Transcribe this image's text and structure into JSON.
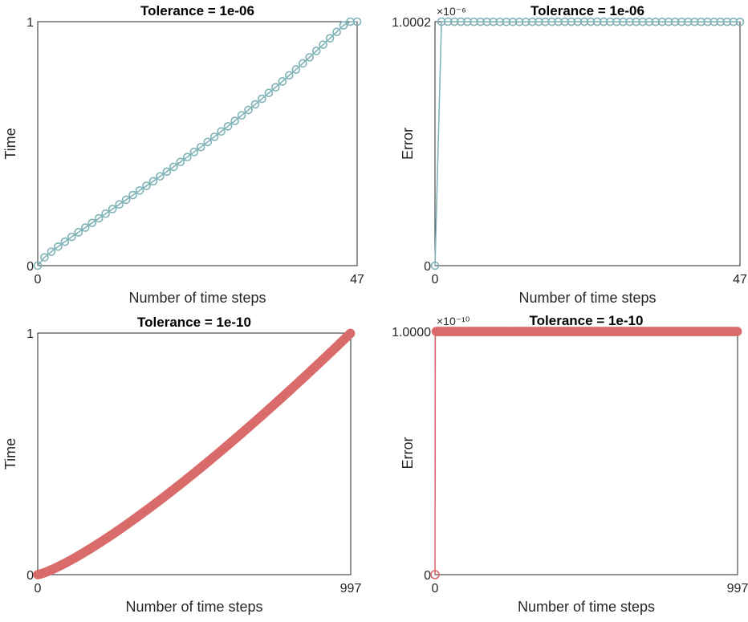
{
  "chart_data": [
    {
      "type": "line",
      "title": "Tolerance = 1e-06",
      "xlabel": "Number of time steps",
      "ylabel": "Time",
      "xlim": [
        0,
        47
      ],
      "ylim": [
        0,
        1
      ],
      "xticks": [
        "0",
        "47"
      ],
      "yticks": [
        "0",
        "1"
      ],
      "exponent": "",
      "color": "#7fb3b8",
      "marker": "open-circle",
      "series": [
        {
          "x": [
            0,
            1,
            2,
            3,
            4,
            5,
            6,
            7,
            8,
            9,
            10,
            11,
            12,
            13,
            14,
            15,
            16,
            17,
            18,
            19,
            20,
            21,
            22,
            23,
            24,
            25,
            26,
            27,
            28,
            29,
            30,
            31,
            32,
            33,
            34,
            35,
            36,
            37,
            38,
            39,
            40,
            41,
            42,
            43,
            44,
            45,
            46,
            47
          ],
          "y": [
            0,
            0.034,
            0.057,
            0.078,
            0.098,
            0.118,
            0.137,
            0.156,
            0.175,
            0.194,
            0.213,
            0.232,
            0.251,
            0.27,
            0.289,
            0.308,
            0.327,
            0.346,
            0.366,
            0.385,
            0.405,
            0.425,
            0.445,
            0.466,
            0.486,
            0.507,
            0.528,
            0.55,
            0.571,
            0.593,
            0.616,
            0.638,
            0.661,
            0.684,
            0.708,
            0.731,
            0.755,
            0.78,
            0.804,
            0.829,
            0.854,
            0.88,
            0.906,
            0.932,
            0.958,
            0.985,
            1.0,
            1.0
          ]
        }
      ]
    },
    {
      "type": "line",
      "title": "Tolerance = 1e-06",
      "xlabel": "Number of time steps",
      "ylabel": "Error",
      "xlim": [
        0,
        47
      ],
      "ylim": [
        0,
        1.0002
      ],
      "xticks": [
        "0",
        "47"
      ],
      "yticks": [
        "0",
        "1.0002"
      ],
      "exponent": "×10⁻⁶",
      "color": "#7fb3b8",
      "marker": "open-circle",
      "series": [
        {
          "x": [
            0,
            1,
            2,
            3,
            4,
            5,
            6,
            7,
            8,
            9,
            10,
            11,
            12,
            13,
            14,
            15,
            16,
            17,
            18,
            19,
            20,
            21,
            22,
            23,
            24,
            25,
            26,
            27,
            28,
            29,
            30,
            31,
            32,
            33,
            34,
            35,
            36,
            37,
            38,
            39,
            40,
            41,
            42,
            43,
            44,
            45,
            46,
            47
          ],
          "y": [
            0,
            1.0002,
            1.0002,
            1.0001,
            1.0,
            0.9999,
            0.9998,
            0.9997,
            0.9996,
            0.9995,
            0.9994,
            0.9993,
            0.9993,
            0.9993,
            0.9994,
            0.9995,
            0.9996,
            0.9997,
            0.9998,
            0.9999,
            1.0,
            1.0,
            1.0,
            1.0,
            1.0,
            0.9999,
            0.9999,
            0.9998,
            0.9997,
            0.9996,
            0.9996,
            0.9995,
            0.9995,
            0.9995,
            0.9995,
            0.9995,
            0.9995,
            0.9995,
            0.9995,
            0.9995,
            0.9995,
            0.9995,
            0.9995,
            0.9995,
            0.9995,
            0.9995,
            0.9995,
            0.999
          ]
        }
      ]
    },
    {
      "type": "line",
      "title": "Tolerance = 1e-10",
      "xlabel": "Number of time steps",
      "ylabel": "Time",
      "xlim": [
        0,
        997
      ],
      "ylim": [
        0,
        1
      ],
      "xticks": [
        "0",
        "997"
      ],
      "yticks": [
        "0",
        "1"
      ],
      "exponent": "",
      "color": "#d96b6b",
      "marker": "dense-circles",
      "curve": {
        "n": 997,
        "shape": "power",
        "p": 1.25
      }
    },
    {
      "type": "line",
      "title": "Tolerance = 1e-10",
      "xlabel": "Number of time steps",
      "ylabel": "Error",
      "xlim": [
        0,
        997
      ],
      "ylim": [
        0,
        1.0
      ],
      "xticks": [
        "0",
        "997"
      ],
      "yticks": [
        "0",
        "1.0000"
      ],
      "exponent": "×10⁻¹⁰",
      "color": "#d96b6b",
      "marker": "dense-circles",
      "curve": {
        "n": 997,
        "shape": "flat",
        "first": 0,
        "rest": 1.0
      }
    }
  ]
}
